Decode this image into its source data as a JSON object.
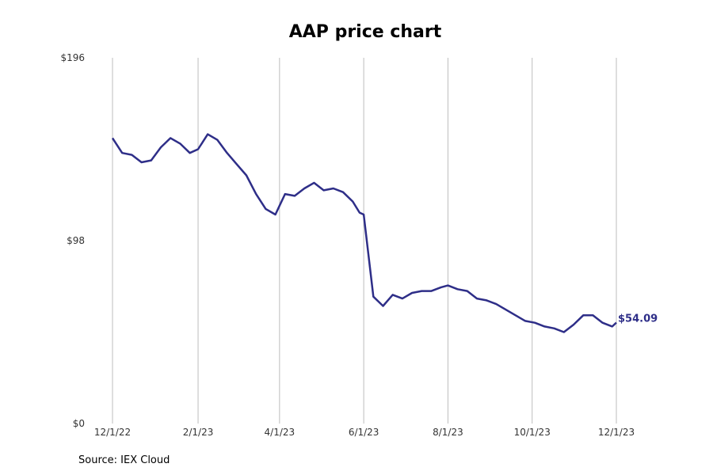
{
  "chart_data": {
    "type": "line",
    "title": "AAP price chart",
    "source": "Source: IEX Cloud",
    "xlabel": "",
    "ylabel": "",
    "x_ticks": [
      "12/1/22",
      "2/1/23",
      "4/1/23",
      "6/1/23",
      "8/1/23",
      "10/1/23",
      "12/1/23"
    ],
    "y_ticks": [
      "$0",
      "$98",
      "$196"
    ],
    "ylim": [
      0,
      196
    ],
    "grid": "vertical",
    "line_color": "#2e2e88",
    "end_label": "$54.09",
    "series": [
      {
        "x": [
          "2022-12-01",
          "2022-12-08",
          "2022-12-15",
          "2022-12-22",
          "2022-12-29",
          "2023-01-05",
          "2023-01-12",
          "2023-01-19",
          "2023-01-26",
          "2023-02-01",
          "2023-02-08",
          "2023-02-15",
          "2023-02-22",
          "2023-03-01",
          "2023-03-08",
          "2023-03-15",
          "2023-03-22",
          "2023-03-29",
          "2023-04-05",
          "2023-04-12",
          "2023-04-19",
          "2023-04-26",
          "2023-05-03",
          "2023-05-10",
          "2023-05-17",
          "2023-05-24",
          "2023-05-29",
          "2023-06-01",
          "2023-06-08",
          "2023-06-15",
          "2023-06-22",
          "2023-06-29",
          "2023-07-06",
          "2023-07-13",
          "2023-07-20",
          "2023-07-27",
          "2023-08-01",
          "2023-08-08",
          "2023-08-15",
          "2023-08-22",
          "2023-08-29",
          "2023-09-05",
          "2023-09-12",
          "2023-09-19",
          "2023-09-26",
          "2023-10-03",
          "2023-10-10",
          "2023-10-17",
          "2023-10-24",
          "2023-10-31",
          "2023-11-07",
          "2023-11-14",
          "2023-11-21",
          "2023-11-28",
          "2023-12-01"
        ],
        "values": [
          153,
          145,
          144,
          140,
          141,
          148,
          153,
          150,
          145,
          147,
          155,
          152,
          145,
          139,
          133,
          123,
          115,
          112,
          123,
          122,
          126,
          129,
          125,
          126,
          124,
          119,
          113,
          112,
          68,
          63,
          69,
          67,
          70,
          71,
          71,
          73,
          74,
          72,
          71,
          67,
          66,
          64,
          61,
          58,
          55,
          54,
          52,
          51,
          49,
          53,
          58,
          58,
          54,
          52,
          54.09
        ]
      }
    ]
  }
}
